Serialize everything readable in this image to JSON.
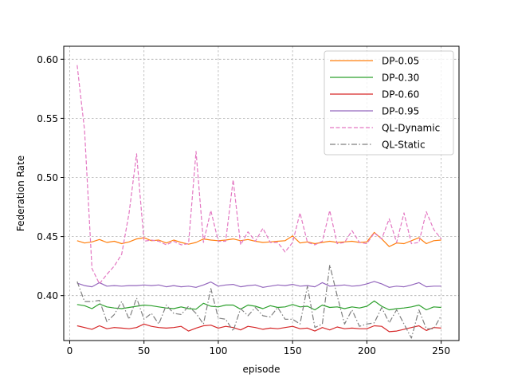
{
  "chart_data": {
    "type": "line",
    "title": "",
    "xlabel": "episode",
    "ylabel": "Federation Rate",
    "xlim": [
      -4,
      262
    ],
    "ylim": [
      0.362,
      0.611
    ],
    "xticks": [
      0,
      50,
      100,
      150,
      200,
      250
    ],
    "yticks": [
      0.4,
      0.45,
      0.5,
      0.55,
      0.6
    ],
    "xtick_labels": [
      "0",
      "50",
      "100",
      "150",
      "200",
      "250"
    ],
    "ytick_labels": [
      "0.40",
      "0.45",
      "0.50",
      "0.55",
      "0.60"
    ],
    "grid": true,
    "legend_position": "top-right",
    "x": [
      5,
      10,
      15,
      20,
      25,
      30,
      35,
      40,
      45,
      50,
      55,
      60,
      65,
      70,
      75,
      80,
      85,
      90,
      95,
      100,
      105,
      110,
      115,
      120,
      125,
      130,
      135,
      140,
      145,
      150,
      155,
      160,
      165,
      170,
      175,
      180,
      185,
      190,
      195,
      200,
      205,
      210,
      215,
      220,
      225,
      230,
      235,
      240,
      245,
      250
    ],
    "series": [
      {
        "name": "DP-0.05",
        "color": "#ff7f0e",
        "style": "solid",
        "values": [
          0.4465,
          0.4445,
          0.4455,
          0.4475,
          0.445,
          0.446,
          0.444,
          0.4455,
          0.448,
          0.449,
          0.4465,
          0.447,
          0.4445,
          0.447,
          0.445,
          0.4435,
          0.445,
          0.448,
          0.447,
          0.4465,
          0.447,
          0.448,
          0.4465,
          0.4475,
          0.446,
          0.445,
          0.4455,
          0.446,
          0.4465,
          0.4505,
          0.4445,
          0.4455,
          0.444,
          0.445,
          0.446,
          0.445,
          0.4455,
          0.446,
          0.445,
          0.4455,
          0.4535,
          0.448,
          0.4415,
          0.4445,
          0.444,
          0.4465,
          0.449,
          0.444,
          0.4465,
          0.447
        ]
      },
      {
        "name": "DP-0.30",
        "color": "#2ca02c",
        "style": "solid",
        "values": [
          0.3925,
          0.3915,
          0.389,
          0.393,
          0.3905,
          0.3895,
          0.389,
          0.39,
          0.391,
          0.392,
          0.3915,
          0.3905,
          0.3895,
          0.389,
          0.3905,
          0.389,
          0.3885,
          0.3935,
          0.391,
          0.3905,
          0.392,
          0.392,
          0.3885,
          0.392,
          0.391,
          0.389,
          0.3915,
          0.39,
          0.3905,
          0.3925,
          0.3905,
          0.391,
          0.388,
          0.392,
          0.39,
          0.3905,
          0.389,
          0.3905,
          0.3895,
          0.391,
          0.3955,
          0.391,
          0.388,
          0.389,
          0.3895,
          0.3905,
          0.392,
          0.388,
          0.3905,
          0.39
        ]
      },
      {
        "name": "DP-0.60",
        "color": "#d62728",
        "style": "solid",
        "values": [
          0.3745,
          0.373,
          0.3715,
          0.3745,
          0.372,
          0.373,
          0.3725,
          0.372,
          0.373,
          0.376,
          0.374,
          0.373,
          0.3725,
          0.373,
          0.374,
          0.37,
          0.3725,
          0.3745,
          0.375,
          0.3725,
          0.374,
          0.373,
          0.371,
          0.374,
          0.373,
          0.3715,
          0.3725,
          0.372,
          0.373,
          0.374,
          0.372,
          0.3725,
          0.37,
          0.373,
          0.371,
          0.3735,
          0.372,
          0.3725,
          0.372,
          0.372,
          0.3745,
          0.374,
          0.3695,
          0.37,
          0.3715,
          0.373,
          0.3745,
          0.3705,
          0.373,
          0.3725
        ]
      },
      {
        "name": "DP-0.95",
        "color": "#9467bd",
        "style": "solid",
        "values": [
          0.4105,
          0.4085,
          0.4075,
          0.411,
          0.408,
          0.4085,
          0.408,
          0.4085,
          0.4085,
          0.409,
          0.4085,
          0.409,
          0.4075,
          0.4085,
          0.4075,
          0.408,
          0.407,
          0.409,
          0.4115,
          0.408,
          0.409,
          0.4095,
          0.4075,
          0.4085,
          0.409,
          0.407,
          0.408,
          0.409,
          0.4085,
          0.4095,
          0.408,
          0.4085,
          0.4075,
          0.411,
          0.408,
          0.4085,
          0.409,
          0.408,
          0.4085,
          0.41,
          0.412,
          0.41,
          0.407,
          0.408,
          0.4075,
          0.409,
          0.411,
          0.4075,
          0.408,
          0.408
        ]
      },
      {
        "name": "QL-Dynamic",
        "color": "#e377c2",
        "style": "dashed",
        "values": [
          0.595,
          0.54,
          0.423,
          0.41,
          0.418,
          0.425,
          0.435,
          0.47,
          0.52,
          0.446,
          0.447,
          0.446,
          0.443,
          0.446,
          0.443,
          0.444,
          0.522,
          0.445,
          0.472,
          0.446,
          0.446,
          0.498,
          0.443,
          0.454,
          0.446,
          0.457,
          0.445,
          0.445,
          0.437,
          0.445,
          0.47,
          0.445,
          0.443,
          0.446,
          0.472,
          0.444,
          0.445,
          0.455,
          0.445,
          0.444,
          0.453,
          0.448,
          0.465,
          0.445,
          0.47,
          0.444,
          0.445,
          0.471,
          0.456,
          0.448
        ]
      },
      {
        "name": "QL-Static",
        "color": "#7f7f7f",
        "style": "dashdot",
        "values": [
          0.412,
          0.395,
          0.395,
          0.396,
          0.378,
          0.384,
          0.395,
          0.38,
          0.398,
          0.38,
          0.385,
          0.376,
          0.392,
          0.385,
          0.384,
          0.391,
          0.385,
          0.376,
          0.406,
          0.381,
          0.38,
          0.37,
          0.389,
          0.383,
          0.39,
          0.383,
          0.382,
          0.39,
          0.38,
          0.38,
          0.376,
          0.408,
          0.373,
          0.376,
          0.426,
          0.4,
          0.376,
          0.388,
          0.374,
          0.376,
          0.377,
          0.39,
          0.377,
          0.388,
          0.376,
          0.364,
          0.388,
          0.372,
          0.372,
          0.383
        ]
      }
    ]
  }
}
